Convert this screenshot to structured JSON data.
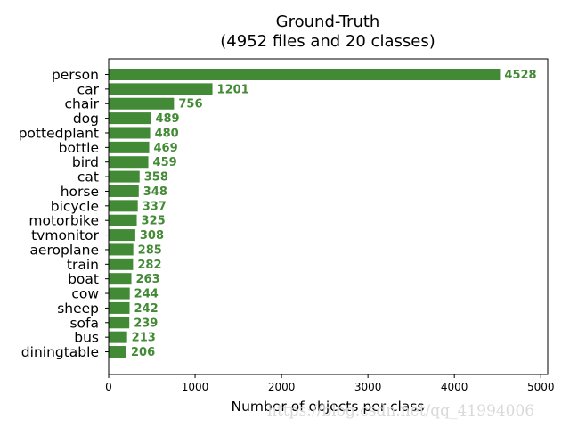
{
  "chart_data": {
    "type": "bar",
    "orientation": "horizontal",
    "title": "Ground-Truth",
    "subtitle": "(4952 files and 20 classes)",
    "xlabel": "Number of objects per class",
    "ylabel": "",
    "xlim": [
      0,
      5080
    ],
    "xticks": [
      0,
      1000,
      2000,
      3000,
      4000,
      5000
    ],
    "grid": false,
    "bar_color": "#428a35",
    "label_color": "#428a35",
    "categories": [
      "person",
      "car",
      "chair",
      "dog",
      "pottedplant",
      "bottle",
      "bird",
      "cat",
      "horse",
      "bicycle",
      "motorbike",
      "tvmonitor",
      "aeroplane",
      "train",
      "boat",
      "cow",
      "sheep",
      "sofa",
      "bus",
      "diningtable"
    ],
    "values": [
      4528,
      1201,
      756,
      489,
      480,
      469,
      459,
      358,
      348,
      337,
      325,
      308,
      285,
      282,
      263,
      244,
      242,
      239,
      213,
      206
    ]
  },
  "watermark": "https://blog.csdn.net/qq_41994006"
}
